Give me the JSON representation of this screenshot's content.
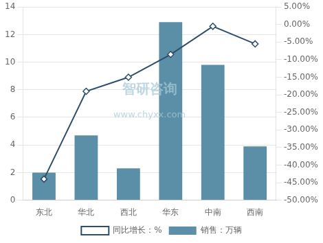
{
  "chart_data": {
    "type": "bar",
    "categories": [
      "东北",
      "华北",
      "西北",
      "华东",
      "中南",
      "西南"
    ],
    "series": [
      {
        "name": "销售：万辆",
        "type": "bar",
        "color": "#5b8fa8",
        "values": [
          2.0,
          4.7,
          2.3,
          12.9,
          9.8,
          3.9
        ]
      },
      {
        "name": "同比增长：%",
        "type": "line",
        "axis": "y2",
        "color": "#2e4d6b",
        "marker": "diamond",
        "line_style": "solid",
        "values": [
          -44.0,
          -19.0,
          -15.0,
          -8.5,
          -0.5,
          -5.5
        ]
      }
    ],
    "ylim": [
      0,
      14
    ],
    "yticks": [
      0,
      2,
      4,
      6,
      8,
      10,
      12,
      14
    ],
    "y2lim": [
      -50,
      5
    ],
    "y2ticks": [
      {
        "value": 5,
        "label": "5.00%"
      },
      {
        "value": 0,
        "label": "0.00%"
      },
      {
        "value": -5,
        "label": "-5.00%"
      },
      {
        "value": -10,
        "label": "-10.00%"
      },
      {
        "value": -15,
        "label": "-15.00%"
      },
      {
        "value": -20,
        "label": "-20.00%"
      },
      {
        "value": -25,
        "label": "-25.00%"
      },
      {
        "value": -30,
        "label": "-30.00%"
      },
      {
        "value": -35,
        "label": "-35.00%"
      },
      {
        "value": -40,
        "label": "-40.00%"
      },
      {
        "value": -45,
        "label": "-45.00%"
      },
      {
        "value": -50,
        "label": "-50.00%"
      }
    ],
    "annotations": [
      "智研咨询",
      "www.chyxx.com"
    ],
    "grid": true,
    "legend": "bottom"
  }
}
